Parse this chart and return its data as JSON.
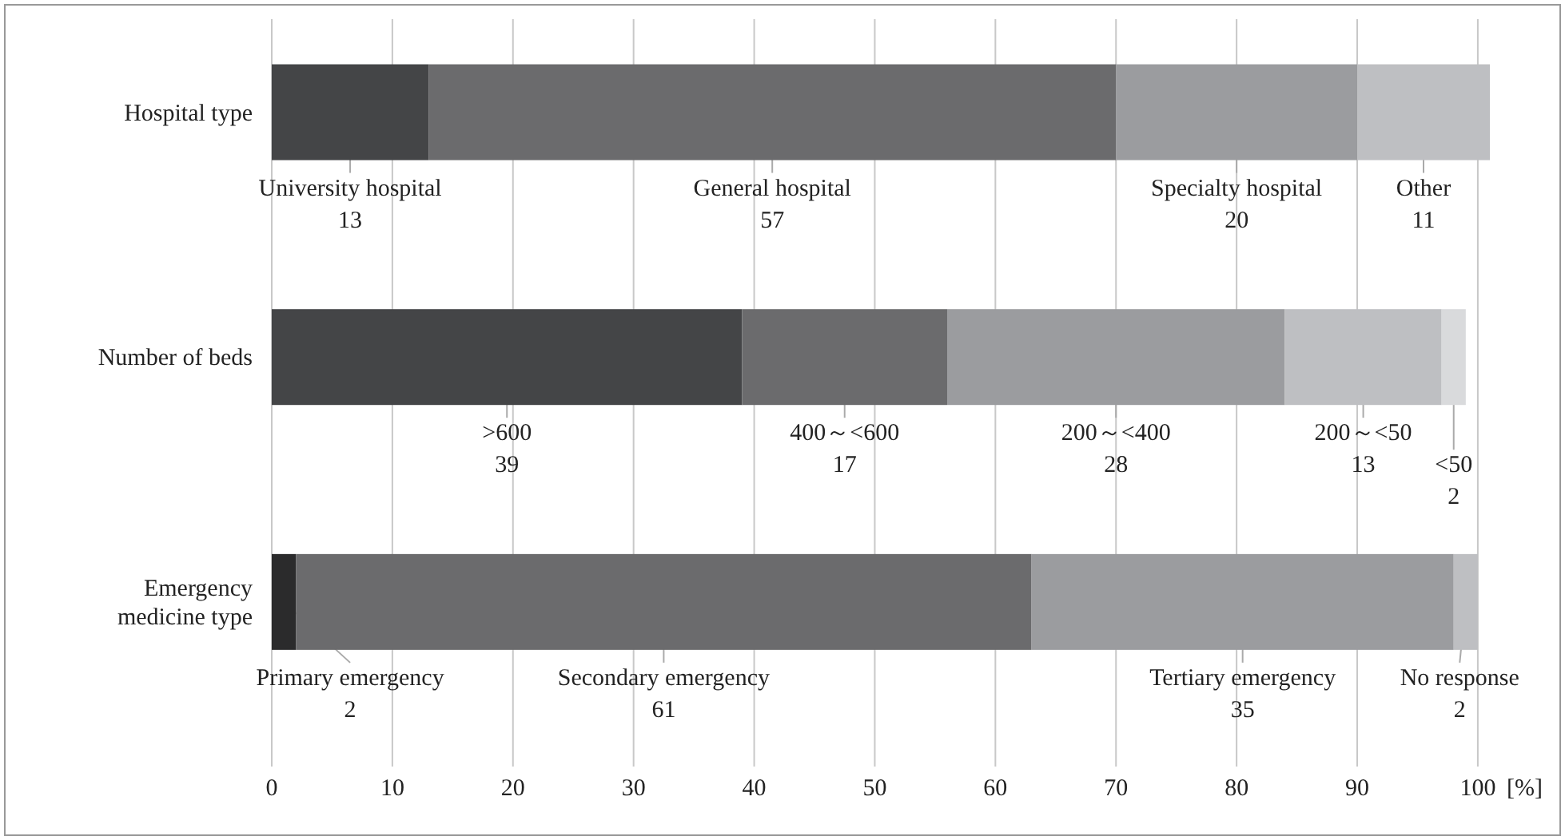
{
  "chart_data": {
    "type": "bar",
    "orientation": "horizontal",
    "stacked": true,
    "categories": [
      "Hospital type",
      "Number of beds",
      "Emergency\nmedicine type"
    ],
    "series": [
      {
        "colors": [
          "#444547",
          "#444547",
          "#2b2b2c"
        ],
        "values": [
          13,
          39,
          2
        ],
        "value_labels": [
          "University hospital\n13",
          ">600\n39",
          "Primary emergency\n2"
        ]
      },
      {
        "color": "#6b6b6d",
        "values": [
          57,
          17,
          61
        ],
        "value_labels": [
          "General hospital\n57",
          "400～<600\n17",
          "Secondary emergency\n61"
        ]
      },
      {
        "color": "#9b9c9f",
        "values": [
          20,
          28,
          35
        ],
        "value_labels": [
          "Specialty hospital\n20",
          "200～<400\n28",
          "Tertiary emergency\n35"
        ]
      },
      {
        "color": "#bebfc2",
        "values": [
          11,
          13,
          2
        ],
        "value_labels": [
          "Other\n11",
          "200～<50\n13",
          "No response\n2"
        ]
      },
      {
        "color": "#d9dadc",
        "values": [
          null,
          2,
          null
        ],
        "value_labels": [
          null,
          "<50\n2",
          null
        ]
      }
    ],
    "xlabel": "[%]",
    "xlim": [
      0,
      101
    ],
    "xticks": [
      0,
      10,
      20,
      30,
      40,
      50,
      60,
      70,
      80,
      90,
      100
    ],
    "grid": "x"
  }
}
